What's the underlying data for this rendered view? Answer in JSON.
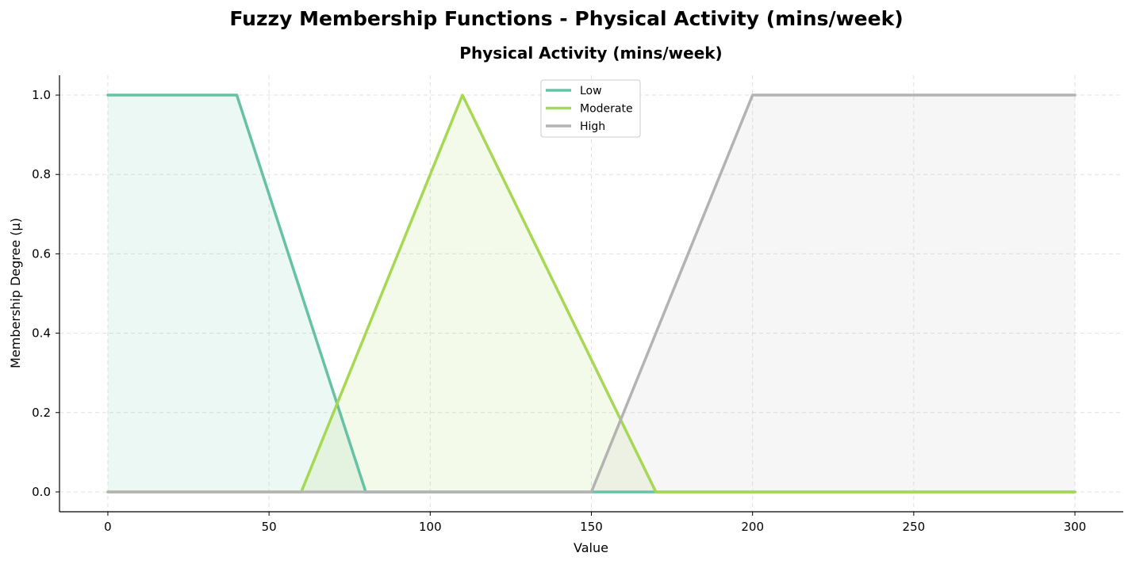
{
  "figure": {
    "suptitle": "Fuzzy Membership Functions - Physical Activity (mins/week)"
  },
  "chart_data": {
    "type": "line",
    "title": "Physical Activity (mins/week)",
    "xlabel": "Value",
    "ylabel": "Membership Degree (μ)",
    "xlim": [
      -15,
      315
    ],
    "ylim": [
      -0.05,
      1.05
    ],
    "x_ticks": [
      0,
      50,
      100,
      150,
      200,
      250,
      300
    ],
    "x_tick_labels": [
      "0",
      "50",
      "100",
      "150",
      "200",
      "250",
      "300"
    ],
    "y_ticks": [
      0.0,
      0.2,
      0.4,
      0.6,
      0.8,
      1.0
    ],
    "y_tick_labels": [
      "0.0",
      "0.2",
      "0.4",
      "0.6",
      "0.8",
      "1.0"
    ],
    "grid": true,
    "fill_under": true,
    "legend_position": "top-center",
    "series": [
      {
        "name": "Low",
        "color": "#66c2a5",
        "x": [
          0,
          40,
          80,
          300
        ],
        "y": [
          1,
          1,
          0,
          0
        ]
      },
      {
        "name": "Moderate",
        "color": "#a6d854",
        "x": [
          0,
          60,
          110,
          170,
          300
        ],
        "y": [
          0,
          0,
          1,
          0,
          0
        ]
      },
      {
        "name": "High",
        "color": "#b3b3b3",
        "x": [
          0,
          150,
          200,
          300
        ],
        "y": [
          0,
          0,
          1,
          1
        ]
      }
    ]
  }
}
